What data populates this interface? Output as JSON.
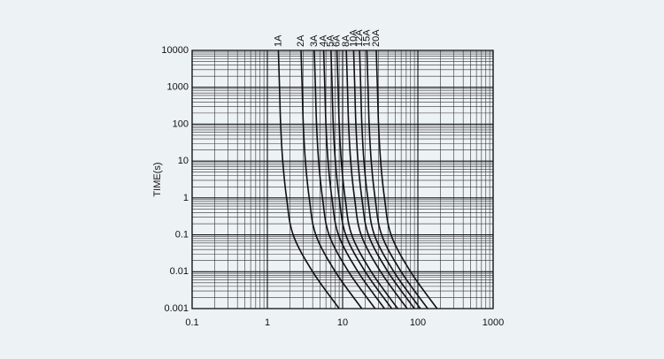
{
  "chart_data": {
    "type": "line",
    "y_label": "TIME(s)",
    "log_x": true,
    "log_y": true,
    "grid": true,
    "minor_grid": true,
    "color": "#111111",
    "xlim": [
      0.1,
      1000
    ],
    "xticks": [
      0.1,
      1,
      10,
      100,
      1000
    ],
    "ylim": [
      0.001,
      10000
    ],
    "yticks": [
      0.001,
      0.01,
      0.1,
      1,
      10,
      100,
      1000,
      10000
    ],
    "series": [
      {
        "name": "1A",
        "x": [
          1.4,
          1.45,
          1.5,
          1.6,
          1.8,
          2.2,
          4,
          9
        ],
        "values": [
          10000,
          1000,
          100,
          10,
          1,
          0.1,
          0.01,
          0.001
        ]
      },
      {
        "name": "2A",
        "x": [
          2.8,
          2.9,
          3,
          3.2,
          3.6,
          4.4,
          8,
          18
        ],
        "values": [
          10000,
          1000,
          100,
          10,
          1,
          0.1,
          0.01,
          0.001
        ]
      },
      {
        "name": "3A",
        "x": [
          4.2,
          4.35,
          4.5,
          4.8,
          5.4,
          6.6,
          12,
          27
        ],
        "values": [
          10000,
          1000,
          100,
          10,
          1,
          0.1,
          0.01,
          0.001
        ]
      },
      {
        "name": "4A",
        "x": [
          5.6,
          5.8,
          6,
          6.4,
          7.2,
          8.8,
          16,
          36
        ],
        "values": [
          10000,
          1000,
          100,
          10,
          1,
          0.1,
          0.01,
          0.001
        ]
      },
      {
        "name": "5A",
        "x": [
          7,
          7.25,
          7.5,
          8,
          9,
          11,
          20,
          45
        ],
        "values": [
          10000,
          1000,
          100,
          10,
          1,
          0.1,
          0.01,
          0.001
        ]
      },
      {
        "name": "6A",
        "x": [
          8.4,
          8.7,
          9,
          9.6,
          10.8,
          13.2,
          24,
          54
        ],
        "values": [
          10000,
          1000,
          100,
          10,
          1,
          0.1,
          0.01,
          0.001
        ]
      },
      {
        "name": "8A",
        "x": [
          11.2,
          11.6,
          12,
          12.8,
          14.4,
          17.6,
          32,
          72
        ],
        "values": [
          10000,
          1000,
          100,
          10,
          1,
          0.1,
          0.01,
          0.001
        ]
      },
      {
        "name": "10A",
        "x": [
          14,
          14.5,
          15,
          16,
          18,
          22,
          40,
          90
        ],
        "values": [
          10000,
          1000,
          100,
          10,
          1,
          0.1,
          0.01,
          0.001
        ]
      },
      {
        "name": "12A",
        "x": [
          16.8,
          17.4,
          18,
          19.2,
          21.6,
          26.4,
          48,
          108
        ],
        "values": [
          10000,
          1000,
          100,
          10,
          1,
          0.1,
          0.01,
          0.001
        ]
      },
      {
        "name": "15A",
        "x": [
          21,
          21.75,
          22.5,
          24,
          27,
          33,
          60,
          135
        ],
        "values": [
          10000,
          1000,
          100,
          10,
          1,
          0.1,
          0.01,
          0.001
        ]
      },
      {
        "name": "20A",
        "x": [
          28,
          29,
          30,
          32,
          36,
          44,
          80,
          180
        ],
        "values": [
          10000,
          1000,
          100,
          10,
          1,
          0.1,
          0.01,
          0.001
        ]
      }
    ]
  }
}
